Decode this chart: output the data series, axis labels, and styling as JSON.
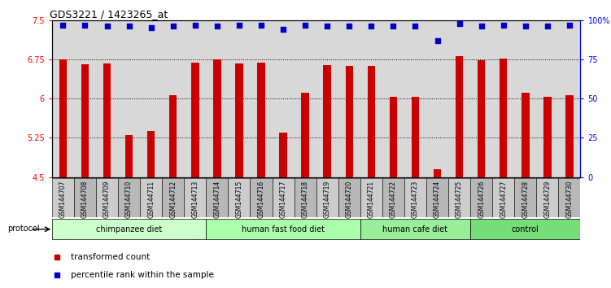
{
  "title": "GDS3221 / 1423265_at",
  "samples": [
    "GSM144707",
    "GSM144708",
    "GSM144709",
    "GSM144710",
    "GSM144711",
    "GSM144712",
    "GSM144713",
    "GSM144714",
    "GSM144715",
    "GSM144716",
    "GSM144717",
    "GSM144718",
    "GSM144719",
    "GSM144720",
    "GSM144721",
    "GSM144722",
    "GSM144723",
    "GSM144724",
    "GSM144725",
    "GSM144726",
    "GSM144727",
    "GSM144728",
    "GSM144729",
    "GSM144730"
  ],
  "bar_values": [
    6.75,
    6.65,
    6.68,
    5.3,
    5.38,
    6.06,
    6.69,
    6.75,
    6.67,
    6.69,
    5.35,
    6.12,
    6.64,
    6.63,
    6.62,
    6.04,
    6.04,
    4.65,
    6.82,
    6.74,
    6.77,
    6.12,
    6.03,
    6.07
  ],
  "percentile_values": [
    97,
    97,
    96,
    96,
    95,
    96,
    97,
    96,
    97,
    97,
    94,
    97,
    96,
    96,
    96,
    96,
    96,
    87,
    98,
    96,
    97,
    96,
    96,
    97
  ],
  "bar_color": "#cc0000",
  "percentile_color": "#0000cc",
  "ylim_left": [
    4.5,
    7.5
  ],
  "ylim_right": [
    0,
    100
  ],
  "yticks_left": [
    4.5,
    5.25,
    6.0,
    6.75,
    7.5
  ],
  "yticks_right": [
    0,
    25,
    50,
    75,
    100
  ],
  "ytick_labels_left": [
    "4.5",
    "5.25",
    "6",
    "6.75",
    "7.5"
  ],
  "ytick_labels_right": [
    "0",
    "25",
    "50",
    "75",
    "100%"
  ],
  "grid_values": [
    5.25,
    6.0,
    6.75
  ],
  "groups": [
    {
      "label": "chimpanzee diet",
      "start": 0,
      "end": 7,
      "color": "#ccffcc"
    },
    {
      "label": "human fast food diet",
      "start": 7,
      "end": 14,
      "color": "#aaffaa"
    },
    {
      "label": "human cafe diet",
      "start": 14,
      "end": 19,
      "color": "#99ee99"
    },
    {
      "label": "control",
      "start": 19,
      "end": 24,
      "color": "#77dd77"
    }
  ],
  "legend_items": [
    {
      "label": "transformed count",
      "color": "#cc0000"
    },
    {
      "label": "percentile rank within the sample",
      "color": "#0000cc"
    }
  ],
  "protocol_label": "protocol",
  "background_color": "#ffffff",
  "plot_bg_color": "#d8d8d8"
}
